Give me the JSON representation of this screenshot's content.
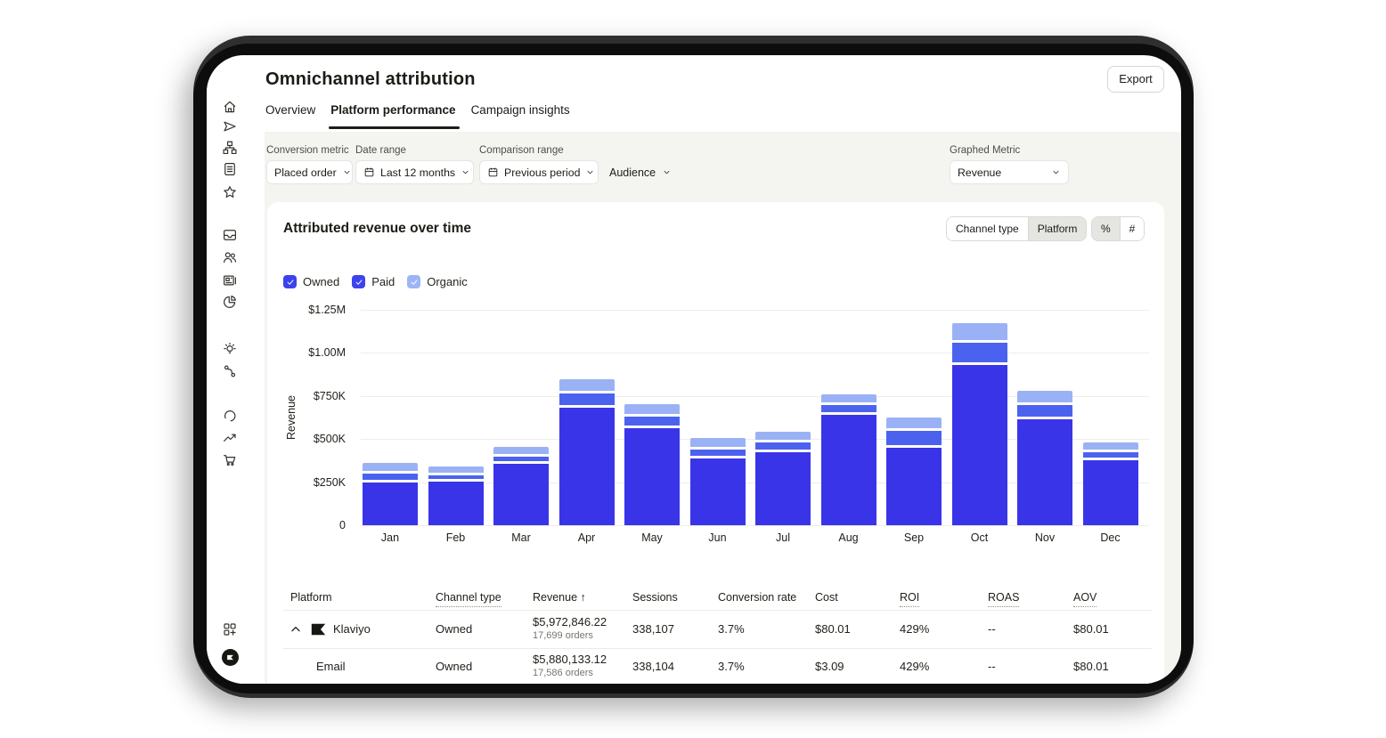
{
  "header": {
    "title": "Omnichannel attribution",
    "export_label": "Export",
    "tabs": [
      {
        "label": "Overview",
        "active": false
      },
      {
        "label": "Platform performance",
        "active": true
      },
      {
        "label": "Campaign insights",
        "active": false
      }
    ]
  },
  "filters": {
    "conversion_metric": {
      "label": "Conversion metric",
      "value": "Placed order"
    },
    "date_range": {
      "label": "Date range",
      "value": "Last 12 months"
    },
    "comparison_range": {
      "label": "Comparison range",
      "value": "Previous period"
    },
    "audience": {
      "value": "Audience"
    },
    "graphed_metric": {
      "label": "Graphed Metric",
      "value": "Revenue"
    }
  },
  "card": {
    "title": "Attributed revenue over time",
    "group_toggle": {
      "options": [
        "Channel type",
        "Platform"
      ],
      "selected": "Platform"
    },
    "format_toggle": {
      "options": [
        "%",
        "#"
      ],
      "selected": "%"
    },
    "legend": [
      {
        "label": "Owned",
        "color": "#3c42ed",
        "checked": true
      },
      {
        "label": "Paid",
        "color": "#3c42ed",
        "checked": true
      },
      {
        "label": "Organic",
        "color": "#9cb5f6",
        "checked": true
      }
    ]
  },
  "chart_data": {
    "type": "bar",
    "stacked": true,
    "title": "Attributed revenue over time",
    "ylabel": "Revenue",
    "categories": [
      "Jan",
      "Feb",
      "Mar",
      "Apr",
      "May",
      "Jun",
      "Jul",
      "Aug",
      "Sep",
      "Oct",
      "Nov",
      "Dec"
    ],
    "y_ticks": [
      "$1.25M",
      "$1.00M",
      "$750K",
      "$500K",
      "$250K",
      "0"
    ],
    "ylim": [
      0,
      1250000
    ],
    "grid": true,
    "legend_position": "top",
    "series": [
      {
        "name": "Owned",
        "color": "#3a34e9",
        "values_usd": [
          255000,
          262000,
          362000,
          690000,
          570000,
          395000,
          430000,
          648000,
          455000,
          940000,
          622000,
          385000
        ]
      },
      {
        "name": "Paid",
        "color": "#4b62ef",
        "values_usd": [
          52000,
          36000,
          46000,
          80000,
          68000,
          52000,
          58000,
          57000,
          100000,
          125000,
          82000,
          45000
        ]
      },
      {
        "name": "Organic",
        "color": "#9ab2f5",
        "values_usd": [
          52000,
          44000,
          45000,
          78000,
          65000,
          58000,
          53000,
          52000,
          70000,
          110000,
          78000,
          50000
        ]
      }
    ]
  },
  "table": {
    "columns": [
      {
        "label": "Platform",
        "dotted": false
      },
      {
        "label": "Channel type",
        "dotted": true
      },
      {
        "label": "Revenue",
        "dotted": false,
        "sort": "↑"
      },
      {
        "label": "Sessions",
        "dotted": false
      },
      {
        "label": "Conversion rate",
        "dotted": false
      },
      {
        "label": "Cost",
        "dotted": false
      },
      {
        "label": "ROI",
        "dotted": true
      },
      {
        "label": "ROAS",
        "dotted": true
      },
      {
        "label": "AOV",
        "dotted": true
      }
    ],
    "rows": [
      {
        "platform": "Klaviyo",
        "expanded": true,
        "has_logo": true,
        "indent": false,
        "channel_type": "Owned",
        "revenue": "$5,972,846.22",
        "orders": "17,699 orders",
        "sessions": "338,107",
        "conversion_rate": "3.7%",
        "cost": "$80.01",
        "roi": "429%",
        "roas": "--",
        "aov": "$80.01"
      },
      {
        "platform": "Email",
        "expanded": false,
        "has_logo": false,
        "indent": true,
        "channel_type": "Owned",
        "revenue": "$5,880,133.12",
        "orders": "17,586 orders",
        "sessions": "338,104",
        "conversion_rate": "3.7%",
        "cost": "$3.09",
        "roi": "429%",
        "roas": "--",
        "aov": "$80.01"
      }
    ]
  },
  "sidebar": {
    "icons": [
      "home",
      "send",
      "flows",
      "forms",
      "reviews",
      "inbox",
      "audience",
      "content",
      "analytics",
      "ideas",
      "integrations",
      "benchmarks",
      "growth",
      "shop",
      "apps",
      "klaviyo-logo"
    ]
  }
}
